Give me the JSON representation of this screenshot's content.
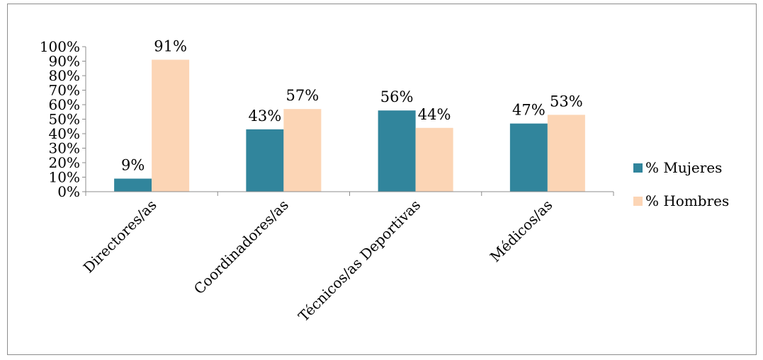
{
  "chart_data": {
    "type": "bar",
    "title": "",
    "xlabel": "",
    "ylabel": "",
    "categories": [
      "Directores/as",
      "Coordinadores/as",
      "Técnicos/as Deportivas",
      "Médicos/as"
    ],
    "series": [
      {
        "name": "% Mujeres",
        "values": [
          9,
          43,
          56,
          47
        ],
        "color": "#31859c"
      },
      {
        "name": "% Hombres",
        "values": [
          91,
          57,
          44,
          53
        ],
        "color": "#fcd5b5"
      }
    ],
    "data_labels": [
      [
        "9%",
        "43%",
        "56%",
        "47%"
      ],
      [
        "91%",
        "57%",
        "44%",
        "53%"
      ]
    ],
    "yticks": [
      "0%",
      "10%",
      "20%",
      "30%",
      "40%",
      "50%",
      "60%",
      "70%",
      "80%",
      "90%",
      "100%"
    ],
    "ylim": [
      0,
      100
    ],
    "grid": false,
    "legend_position": "right"
  }
}
